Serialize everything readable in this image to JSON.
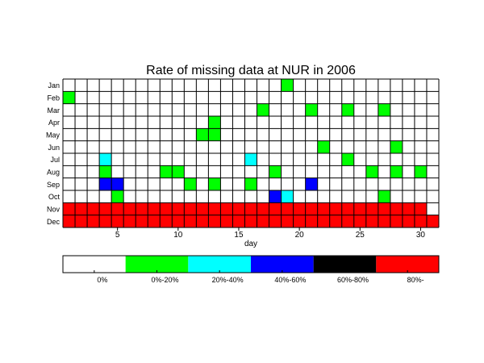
{
  "chart_data": {
    "type": "heatmap",
    "title": "Rate of missing data at NUR in 2006",
    "xlabel": "day",
    "ylabel": "",
    "x_ticks": [
      5,
      10,
      15,
      20,
      25,
      30
    ],
    "days": 31,
    "months": [
      "Jan",
      "Feb",
      "Mar",
      "Apr",
      "May",
      "Jun",
      "Jul",
      "Aug",
      "Sep",
      "Oct",
      "Nov",
      "Dec"
    ],
    "grid": true,
    "legend": {
      "placement": "bottom",
      "bins": [
        {
          "label": "0%",
          "level": 0,
          "color": "#ffffff"
        },
        {
          "label": "0%-20%",
          "level": 1,
          "color": "#00ff00"
        },
        {
          "label": "20%-40%",
          "level": 2,
          "color": "#00ffff"
        },
        {
          "label": "40%-60%",
          "level": 3,
          "color": "#0000ff"
        },
        {
          "label": "60%-80%",
          "level": 4,
          "color": "#000000"
        },
        {
          "label": "80%-",
          "level": 5,
          "color": "#ff0000"
        }
      ]
    },
    "rows": [
      [
        0,
        0,
        0,
        0,
        0,
        0,
        0,
        0,
        0,
        0,
        0,
        0,
        0,
        0,
        0,
        0,
        0,
        0,
        1,
        0,
        0,
        0,
        0,
        0,
        0,
        0,
        0,
        0,
        0,
        0,
        0
      ],
      [
        1,
        0,
        0,
        0,
        0,
        0,
        0,
        0,
        0,
        0,
        0,
        0,
        0,
        0,
        0,
        0,
        0,
        0,
        0,
        0,
        0,
        0,
        0,
        0,
        0,
        0,
        0,
        0,
        0,
        0,
        0
      ],
      [
        0,
        0,
        0,
        0,
        0,
        0,
        0,
        0,
        0,
        0,
        0,
        0,
        0,
        0,
        0,
        0,
        1,
        0,
        0,
        0,
        1,
        0,
        0,
        1,
        0,
        0,
        1,
        0,
        0,
        0,
        0
      ],
      [
        0,
        0,
        0,
        0,
        0,
        0,
        0,
        0,
        0,
        0,
        0,
        0,
        1,
        0,
        0,
        0,
        0,
        0,
        0,
        0,
        0,
        0,
        0,
        0,
        0,
        0,
        0,
        0,
        0,
        0,
        0
      ],
      [
        0,
        0,
        0,
        0,
        0,
        0,
        0,
        0,
        0,
        0,
        0,
        1,
        1,
        0,
        0,
        0,
        0,
        0,
        0,
        0,
        0,
        0,
        0,
        0,
        0,
        0,
        0,
        0,
        0,
        0,
        0
      ],
      [
        0,
        0,
        0,
        0,
        0,
        0,
        0,
        0,
        0,
        0,
        0,
        0,
        0,
        0,
        0,
        0,
        0,
        0,
        0,
        0,
        0,
        1,
        0,
        0,
        0,
        0,
        0,
        1,
        0,
        0,
        0
      ],
      [
        0,
        0,
        0,
        2,
        0,
        0,
        0,
        0,
        0,
        0,
        0,
        0,
        0,
        0,
        0,
        2,
        0,
        0,
        0,
        0,
        0,
        0,
        0,
        1,
        0,
        0,
        0,
        0,
        0,
        0,
        0
      ],
      [
        0,
        0,
        0,
        1,
        0,
        0,
        0,
        0,
        1,
        1,
        0,
        0,
        0,
        0,
        0,
        0,
        0,
        1,
        0,
        0,
        0,
        0,
        0,
        0,
        0,
        1,
        0,
        1,
        0,
        1,
        0
      ],
      [
        0,
        0,
        0,
        3,
        3,
        0,
        0,
        0,
        0,
        0,
        1,
        0,
        1,
        0,
        0,
        1,
        0,
        0,
        0,
        0,
        3,
        0,
        0,
        0,
        0,
        0,
        0,
        0,
        0,
        0,
        0
      ],
      [
        0,
        0,
        0,
        0,
        1,
        0,
        0,
        0,
        0,
        0,
        0,
        0,
        0,
        0,
        0,
        0,
        0,
        3,
        2,
        0,
        0,
        0,
        0,
        0,
        0,
        0,
        1,
        0,
        0,
        0,
        0
      ],
      [
        5,
        5,
        5,
        5,
        5,
        5,
        5,
        5,
        5,
        5,
        5,
        5,
        5,
        5,
        5,
        5,
        5,
        5,
        5,
        5,
        5,
        5,
        5,
        5,
        5,
        5,
        5,
        5,
        5,
        5,
        0
      ],
      [
        5,
        5,
        5,
        5,
        5,
        5,
        5,
        5,
        5,
        5,
        5,
        5,
        5,
        5,
        5,
        5,
        5,
        5,
        5,
        5,
        5,
        5,
        5,
        5,
        5,
        5,
        5,
        5,
        5,
        5,
        5
      ]
    ]
  }
}
